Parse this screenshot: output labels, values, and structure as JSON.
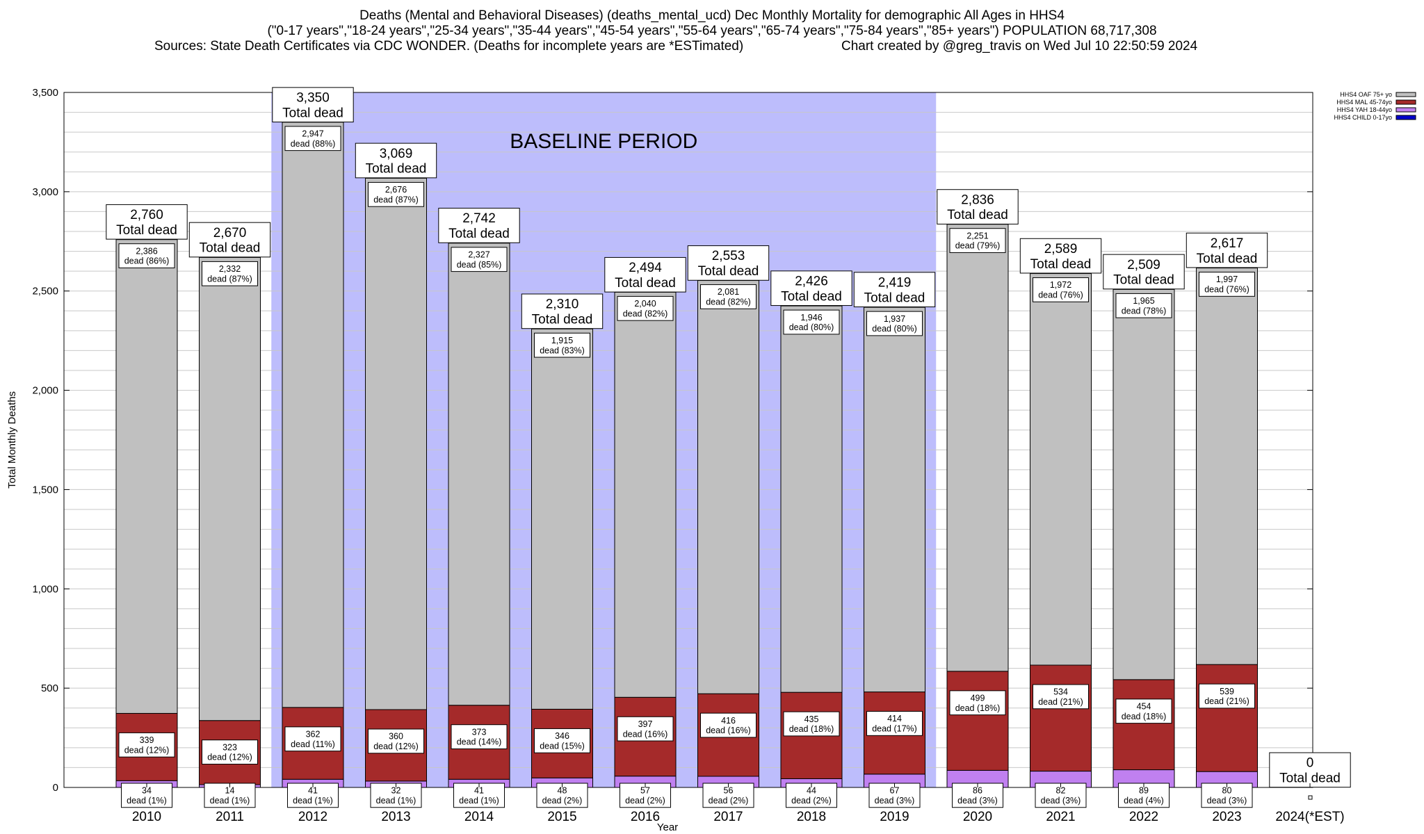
{
  "title": {
    "line1": "Deaths (Mental and Behavioral Diseases) (deaths_mental_ucd) Dec Monthly Mortality for demographic All Ages in HHS4",
    "line2": "(\"0-17 years\",\"18-24 years\",\"25-34 years\",\"35-44 years\",\"45-54 years\",\"55-64 years\",\"65-74 years\",\"75-84 years\",\"85+ years\") POPULATION 68,717,308",
    "line3": "Sources: State Death Certificates via CDC WONDER. (Deaths for incomplete years are *ESTimated)",
    "credit": "Chart created by @greg_travis on Wed Jul 10 22:50:59 2024"
  },
  "chart_data": {
    "type": "bar",
    "stacked": true,
    "xlabel": "Year",
    "ylabel": "Total Monthly Deaths",
    "ylim": [
      0,
      3500
    ],
    "yticks": [
      0,
      500,
      1000,
      1500,
      2000,
      2500,
      3000,
      3500
    ],
    "ytick_labels": [
      "0",
      "500",
      "1,000",
      "1,500",
      "2,000",
      "2,500",
      "3,000",
      "3,500"
    ],
    "grid": true,
    "legend_position": "top-right",
    "baseline_label": "BASELINE PERIOD",
    "baseline_range": [
      "2012",
      "2019"
    ],
    "categories": [
      "2010",
      "2011",
      "2012",
      "2013",
      "2014",
      "2015",
      "2016",
      "2017",
      "2018",
      "2019",
      "2020",
      "2021",
      "2022",
      "2023",
      "2024(*EST)"
    ],
    "totals": [
      2760,
      2670,
      3350,
      3069,
      2742,
      2310,
      2494,
      2553,
      2426,
      2419,
      2836,
      2589,
      2509,
      2617,
      0
    ],
    "total_labels": [
      "2,760",
      "2,670",
      "3,350",
      "3,069",
      "2,742",
      "2,310",
      "2,494",
      "2,553",
      "2,426",
      "2,419",
      "2,836",
      "2,589",
      "2,509",
      "2,617",
      "0"
    ],
    "total_suffix": "Total dead",
    "series": [
      {
        "name": "HHS4 CHILD 0-17yo",
        "color": "#0000cc",
        "values": [
          0,
          0,
          0,
          0,
          0,
          0,
          0,
          0,
          0,
          0,
          0,
          0,
          0,
          0,
          0
        ]
      },
      {
        "name": "HHS4 YAH 18-44yo",
        "color": "#c080f0",
        "values": [
          34,
          14,
          41,
          32,
          41,
          48,
          57,
          56,
          44,
          67,
          86,
          82,
          89,
          80,
          0
        ],
        "labels": [
          "34\ndead (1%)",
          "14\ndead (1%)",
          "41\ndead (1%)",
          "32\ndead (1%)",
          "41\ndead (1%)",
          "48\ndead (2%)",
          "57\ndead (2%)",
          "56\ndead (2%)",
          "44\ndead (2%)",
          "67\ndead (3%)",
          "86\ndead (3%)",
          "82\ndead (3%)",
          "89\ndead (4%)",
          "80\ndead (3%)",
          ""
        ]
      },
      {
        "name": "HHS4 MAL 45-74yo",
        "color": "#a52a2a",
        "values": [
          339,
          323,
          362,
          360,
          373,
          346,
          397,
          416,
          435,
          414,
          499,
          534,
          454,
          539,
          0
        ],
        "labels": [
          "339\ndead (12%)",
          "323\ndead (12%)",
          "362\ndead (11%)",
          "360\ndead (12%)",
          "373\ndead (14%)",
          "346\ndead (15%)",
          "397\ndead (16%)",
          "416\ndead (16%)",
          "435\ndead (18%)",
          "414\ndead (17%)",
          "499\ndead (18%)",
          "534\ndead (21%)",
          "454\ndead (18%)",
          "539\ndead (21%)",
          ""
        ]
      },
      {
        "name": "HHS4 OAF 75+ yo",
        "color": "#c0c0c0",
        "values": [
          2386,
          2332,
          2947,
          2676,
          2327,
          1915,
          2040,
          2081,
          1946,
          1937,
          2251,
          1972,
          1965,
          1997,
          0
        ],
        "labels": [
          "2,386\ndead (86%)",
          "2,332\ndead (87%)",
          "2,947\ndead (88%)",
          "2,676\ndead (87%)",
          "2,327\ndead (85%)",
          "1,915\ndead (83%)",
          "2,040\ndead (82%)",
          "2,081\ndead (82%)",
          "1,946\ndead (80%)",
          "1,937\ndead (80%)",
          "2,251\ndead (79%)",
          "1,972\ndead (76%)",
          "1,965\ndead (78%)",
          "1,997\ndead (76%)",
          ""
        ]
      }
    ],
    "legend_order": [
      "HHS4 OAF 75+ yo",
      "HHS4 MAL 45-74yo",
      "HHS4 YAH 18-44yo",
      "HHS4 CHILD 0-17yo"
    ],
    "colors": {
      "baseline": "#bdbdfc",
      "grid": "#c8c8c8"
    }
  }
}
